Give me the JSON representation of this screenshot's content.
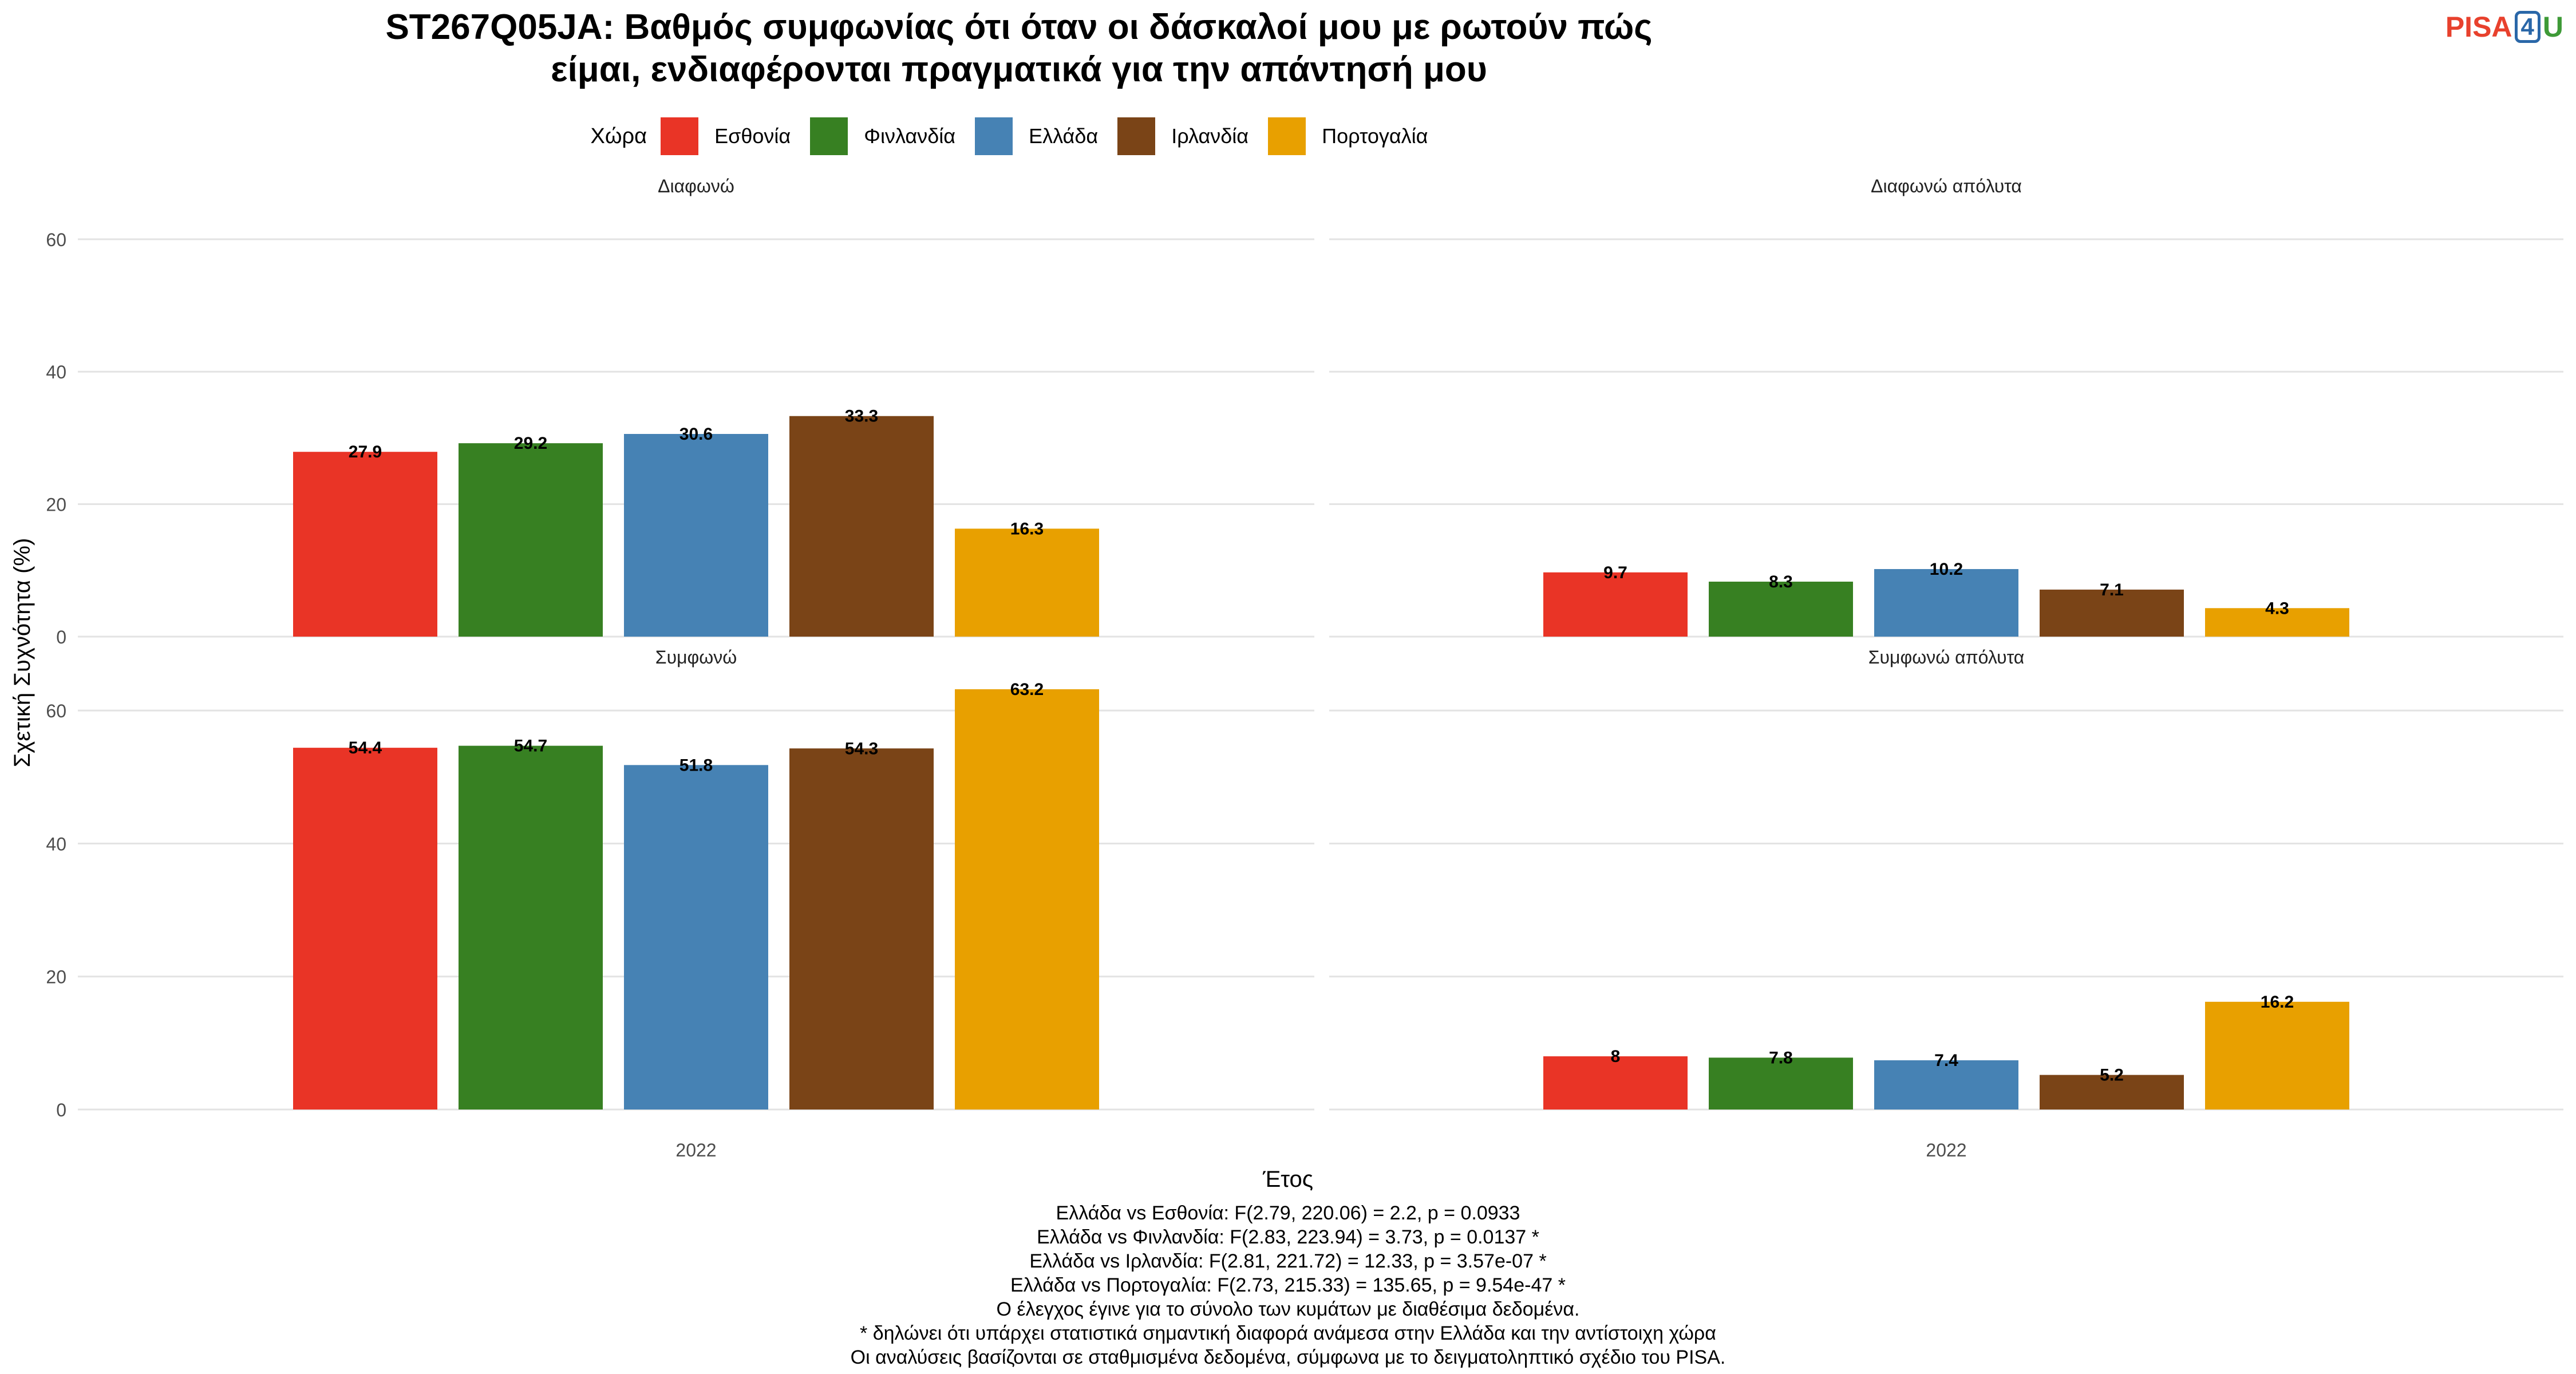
{
  "chart_data": {
    "type": "bar",
    "title": "ST267Q05JA: Βαθμός συμφωνίας ότι όταν οι δάσκαλοί μου με ρωτούν πώς\nείμαι, ενδιαφέρονται πραγματικά για την απάντησή μου",
    "title_lines": [
      "ST267Q05JA: Βαθμός συμφωνίας ότι όταν οι δάσκαλοί μου με ρωτούν πώς",
      "είμαι, ενδιαφέρονται πραγματικά για την απάντησή μου"
    ],
    "xlabel": "Έτος",
    "ylabel": "Σχετική Συχνότητα (%)",
    "ylim": [
      0,
      65
    ],
    "yticks": [
      0,
      20,
      40,
      60
    ],
    "grid": true,
    "legend": {
      "title": "Χώρα",
      "position": "top",
      "entries": [
        "Εσθονία",
        "Φινλανδία",
        "Ελλάδα",
        "Ιρλανδία",
        "Πορτογαλία"
      ]
    },
    "colors": {
      "Εσθονία": "#e93426",
      "Φινλανδία": "#378022",
      "Ελλάδα": "#4682b4",
      "Ιρλανδία": "#7a4417",
      "Πορτογαλία": "#e8a000"
    },
    "categories": [
      "2022"
    ],
    "panels": [
      {
        "title": "Διαφωνώ",
        "x": "2022",
        "series": [
          {
            "name": "Εσθονία",
            "values": [
              27.9
            ]
          },
          {
            "name": "Φινλανδία",
            "values": [
              29.2
            ]
          },
          {
            "name": "Ελλάδα",
            "values": [
              30.6
            ]
          },
          {
            "name": "Ιρλανδία",
            "values": [
              33.3
            ]
          },
          {
            "name": "Πορτογαλία",
            "values": [
              16.3
            ]
          }
        ]
      },
      {
        "title": "Διαφωνώ απόλυτα",
        "x": "2022",
        "series": [
          {
            "name": "Εσθονία",
            "values": [
              9.7
            ]
          },
          {
            "name": "Φινλανδία",
            "values": [
              8.3
            ]
          },
          {
            "name": "Ελλάδα",
            "values": [
              10.2
            ]
          },
          {
            "name": "Ιρλανδία",
            "values": [
              7.1
            ]
          },
          {
            "name": "Πορτογαλία",
            "values": [
              4.3
            ]
          }
        ]
      },
      {
        "title": "Συμφωνώ",
        "x": "2022",
        "series": [
          {
            "name": "Εσθονία",
            "values": [
              54.4
            ]
          },
          {
            "name": "Φινλανδία",
            "values": [
              54.7
            ]
          },
          {
            "name": "Ελλάδα",
            "values": [
              51.8
            ]
          },
          {
            "name": "Ιρλανδία",
            "values": [
              54.3
            ]
          },
          {
            "name": "Πορτογαλία",
            "values": [
              63.2
            ]
          }
        ]
      },
      {
        "title": "Συμφωνώ απόλυτα",
        "x": "2022",
        "series": [
          {
            "name": "Εσθονία",
            "values": [
              8
            ]
          },
          {
            "name": "Φινλανδία",
            "values": [
              7.8
            ]
          },
          {
            "name": "Ελλάδα",
            "values": [
              7.4
            ]
          },
          {
            "name": "Ιρλανδία",
            "values": [
              5.2
            ]
          },
          {
            "name": "Πορτογαλία",
            "values": [
              16.2
            ]
          }
        ]
      }
    ],
    "footnotes": [
      "Ελλάδα vs Εσθονία: F(2.79, 220.06) = 2.2, p = 0.0933",
      "Ελλάδα vs Φινλανδία: F(2.83, 223.94) = 3.73, p = 0.0137 *",
      "Ελλάδα vs Ιρλανδία: F(2.81, 221.72) = 12.33, p = 3.57e-07 *",
      "Ελλάδα vs Πορτογαλία: F(2.73, 215.33) = 135.65, p = 9.54e-47 *",
      "Ο έλεγχος έγινε για το σύνολο των κυμάτων με διαθέσιμα δεδομένα.",
      "* δηλώνει ότι υπάρχει στατιστικά σημαντική διαφορά ανάμεσα στην Ελλάδα και την αντίστοιχη χώρα",
      "Οι αναλύσεις βασίζονται σε σταθμισμένα δεδομένα, σύμφωνα με το δειγματοληπτικό σχέδιο του PISA."
    ]
  },
  "logo": {
    "text_pisa": "PISA",
    "text_4": "4",
    "text_u": "U"
  }
}
